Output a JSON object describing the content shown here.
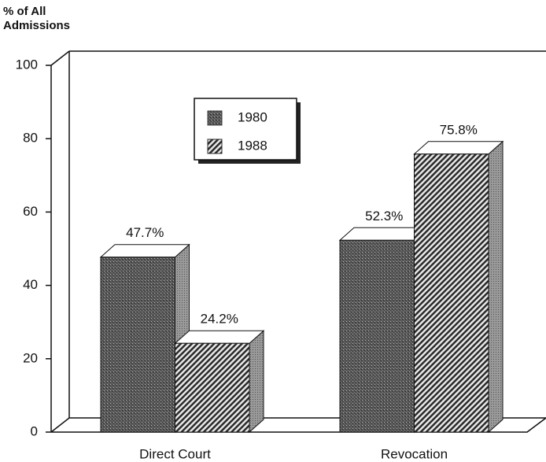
{
  "chart_data": {
    "type": "bar3d",
    "y_label": "% of All Admissions",
    "categories": [
      "Direct Court",
      "Revocation"
    ],
    "series": [
      {
        "name": "1980",
        "color": "#3c3c3c",
        "values": [
          47.7,
          52.3
        ],
        "value_labels": [
          "47.7%",
          "52.3%"
        ]
      },
      {
        "name": "1988",
        "color": "#2a2a2a",
        "values": [
          24.2,
          75.8
        ],
        "value_labels": [
          "24.2%",
          "75.8%"
        ]
      }
    ],
    "ylim": [
      0,
      100
    ],
    "yticks": [
      0,
      20,
      40,
      60,
      80,
      100
    ]
  }
}
